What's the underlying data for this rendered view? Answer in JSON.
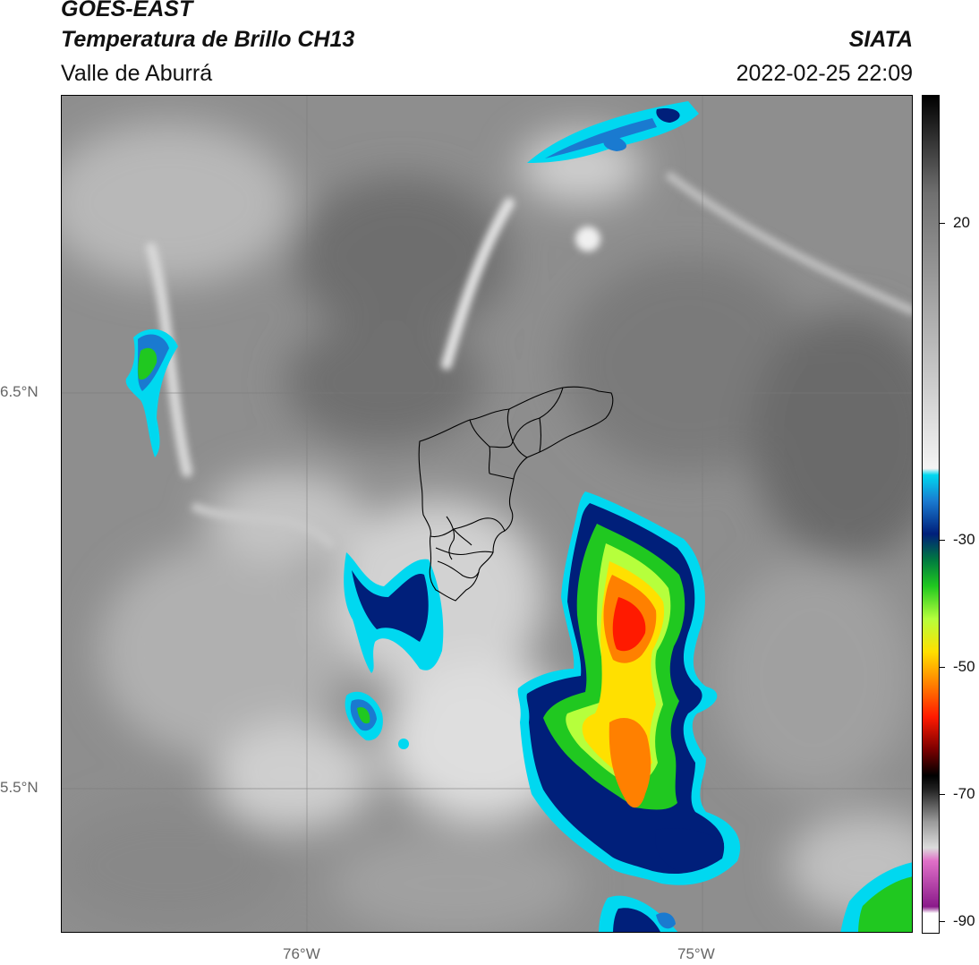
{
  "header": {
    "product": "GOES-EAST",
    "channel": "Temperatura de Brillo CH13",
    "region": "Valle de Aburrá",
    "org": "SIATA",
    "timestamp": "2022-02-25 22:09"
  },
  "axes": {
    "lat_labels": [
      "6.5°N",
      "5.5°N"
    ],
    "lon_labels": [
      "76°W",
      "75°W"
    ]
  },
  "colorbar": {
    "ticks": [
      "20",
      "-30",
      "-50",
      "-70",
      "-90"
    ],
    "range": [
      -93,
      35
    ],
    "stops": [
      {
        "t": -93,
        "color": "#ffffff"
      },
      {
        "t": -90,
        "color": "#ffffff"
      },
      {
        "t": -89,
        "color": "#8a1a8a"
      },
      {
        "t": -82,
        "color": "#e070c8"
      },
      {
        "t": -80,
        "color": "#dcdcdc"
      },
      {
        "t": -76,
        "color": "#9a9a9a"
      },
      {
        "t": -71,
        "color": "#202020"
      },
      {
        "t": -69,
        "color": "#000000"
      },
      {
        "t": -65,
        "color": "#7a0000"
      },
      {
        "t": -60,
        "color": "#ff1a00"
      },
      {
        "t": -55,
        "color": "#ff8000"
      },
      {
        "t": -50,
        "color": "#ffe000"
      },
      {
        "t": -45,
        "color": "#b6ff3c"
      },
      {
        "t": -40,
        "color": "#20c820"
      },
      {
        "t": -36,
        "color": "#007a40"
      },
      {
        "t": -32,
        "color": "#001f7a"
      },
      {
        "t": -27,
        "color": "#1a7ad0"
      },
      {
        "t": -23,
        "color": "#00d8f0"
      },
      {
        "t": -22,
        "color": "#f4f4f4"
      },
      {
        "t": 0,
        "color": "#b0b0b0"
      },
      {
        "t": 20,
        "color": "#707070"
      },
      {
        "t": 35,
        "color": "#000000"
      }
    ]
  },
  "legend_colors": {
    "land_light": "#c8c8c8",
    "land_dark": "#7a7a7a",
    "cold_cyan": "#00d8f0",
    "cold_blue": "#001f7a",
    "cold_green": "#20c820",
    "cold_yellow": "#ffe000",
    "cold_orange": "#ff8000",
    "cold_red": "#ff1a00"
  }
}
